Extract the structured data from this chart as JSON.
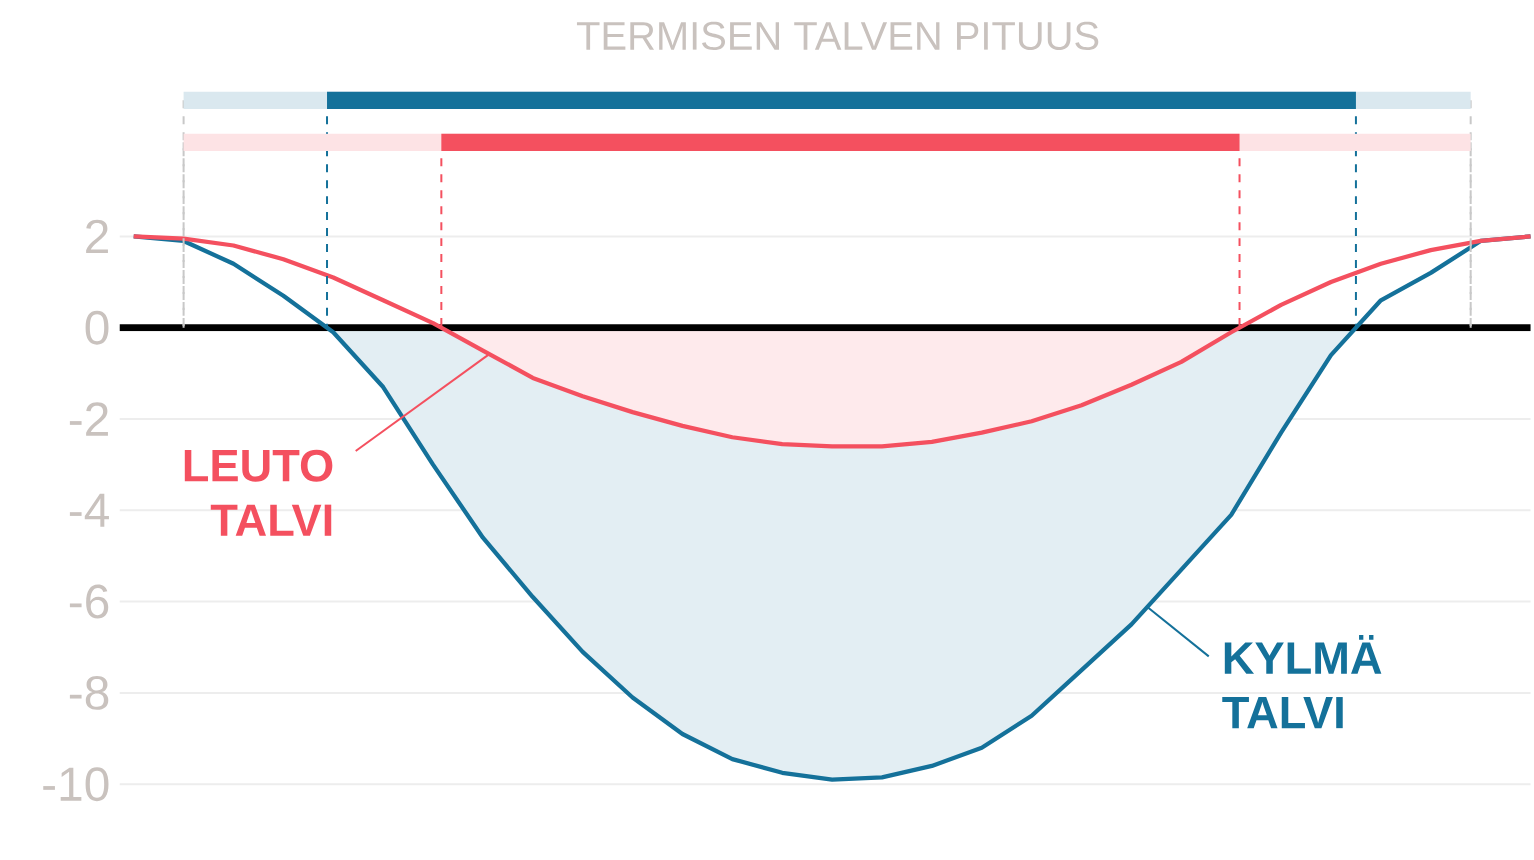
{
  "chart_data": {
    "type": "area",
    "title": "TERMISEN TALVEN PITUUS",
    "categories": [
      null,
      null,
      null,
      null,
      null,
      null,
      null,
      null,
      null,
      null,
      null,
      null,
      null,
      null,
      null,
      null,
      null,
      null,
      null,
      null,
      null,
      null,
      null,
      null,
      null,
      null,
      null,
      null,
      null
    ],
    "series": [
      {
        "name": "KYLMÄ TALVI",
        "color": "#14719a",
        "values": [
          2,
          1.9,
          1.4,
          0.7,
          -0.1,
          -1.3,
          -3,
          -4.6,
          -5.9,
          -7.1,
          -8.1,
          -8.9,
          -9.45,
          -9.75,
          -9.9,
          -9.85,
          -9.6,
          -9.2,
          -8.5,
          -7.5,
          -6.5,
          -5.3,
          -4.1,
          -2.3,
          -0.6,
          0.6,
          1.2,
          1.9,
          2
        ]
      },
      {
        "name": "LEUTO TALVI",
        "color": "#f4505f",
        "values": [
          2,
          1.95,
          1.8,
          1.5,
          1.1,
          0.6,
          0.1,
          -0.5,
          -1.1,
          -1.5,
          -1.85,
          -2.15,
          -2.4,
          -2.55,
          -2.6,
          -2.6,
          -2.5,
          -2.3,
          -2.05,
          -1.7,
          -1.25,
          -0.75,
          -0.1,
          0.5,
          1,
          1.4,
          1.7,
          1.9,
          2
        ]
      }
    ],
    "ylim": [
      -10,
      2
    ],
    "yticks": [
      2,
      0,
      -2,
      -4,
      -6,
      -8,
      -10
    ],
    "tick_labels": "y",
    "grid": "y",
    "marker": "none",
    "ref_lines": [
      {
        "axis": "y",
        "value": 0,
        "color": "#000000"
      }
    ]
  }
}
